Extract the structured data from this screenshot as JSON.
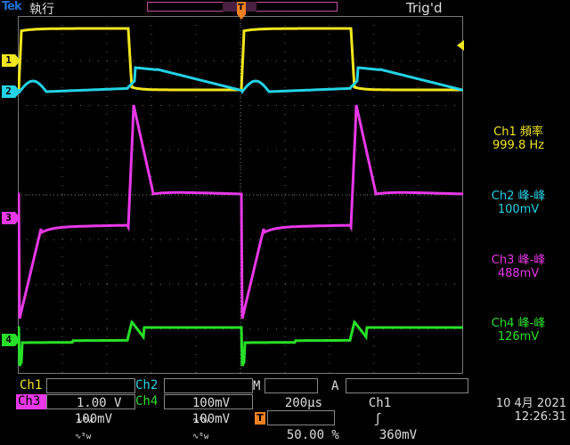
{
  "brand": "Tek",
  "mode": "執行",
  "trigger_state": "Trig'd",
  "trigger_marker": "T",
  "channels": [
    {
      "id": "1",
      "color": "#f2e61c"
    },
    {
      "id": "2",
      "color": "#23d2e6"
    },
    {
      "id": "3",
      "color": "#e838e8"
    },
    {
      "id": "4",
      "color": "#28e028"
    }
  ],
  "measurements": [
    {
      "title": "Ch1 頻率",
      "value": "999.8 Hz",
      "color": "#f2e61c"
    },
    {
      "title": "Ch2 峰-峰",
      "value": "100mV",
      "color": "#23d2e6"
    },
    {
      "title": "Ch3 峰-峰",
      "value": "488mV",
      "color": "#e838e8"
    },
    {
      "title": "Ch4 峰-峰",
      "value": "126mV",
      "color": "#28e028"
    }
  ],
  "bottom": {
    "ch1_label": "Ch1",
    "ch1_scale": "1.00 V",
    "ch2_label": "Ch2",
    "ch2_scale": "100mV",
    "ch3_label": "Ch3",
    "ch3_scale": "100mV",
    "ch4_label": "Ch4",
    "ch4_scale": "100mV",
    "coupling_icon": "∿ᴮw",
    "timebase_label": "M",
    "timebase": "200µs",
    "trig_mode": "A",
    "trig_source": "Ch1",
    "trig_slope": "ʃ",
    "trig_level": "360mV",
    "trig_pos_marker": "T",
    "trig_pos": "50.00 %",
    "date": "10 4月  2021",
    "time": "12:26:31"
  }
}
